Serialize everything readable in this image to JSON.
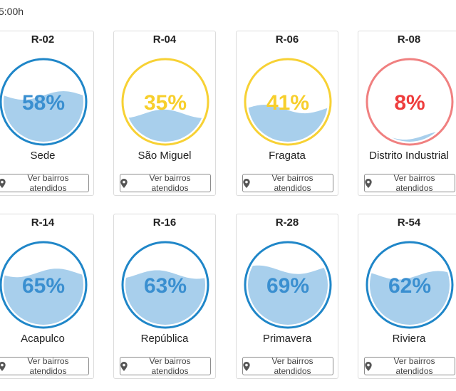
{
  "header": {
    "update_time": "5:00h"
  },
  "button_label": "Ver bairros atendidos",
  "reservoirs": [
    {
      "code": "R-02",
      "name": "Sede",
      "percent": 58,
      "percent_label": "58%",
      "status": "blue"
    },
    {
      "code": "R-04",
      "name": "São Miguel",
      "percent": 35,
      "percent_label": "35%",
      "status": "yellow"
    },
    {
      "code": "R-06",
      "name": "Fragata",
      "percent": 41,
      "percent_label": "41%",
      "status": "yellow"
    },
    {
      "code": "R-08",
      "name": "Distrito Industrial",
      "percent": 8,
      "percent_label": "8%",
      "status": "red"
    },
    {
      "code": "R-14",
      "name": "Acapulco",
      "percent": 65,
      "percent_label": "65%",
      "status": "blue"
    },
    {
      "code": "R-16",
      "name": "República",
      "percent": 63,
      "percent_label": "63%",
      "status": "blue"
    },
    {
      "code": "R-28",
      "name": "Primavera",
      "percent": 69,
      "percent_label": "69%",
      "status": "blue"
    },
    {
      "code": "R-54",
      "name": "Riviera",
      "percent": 62,
      "percent_label": "62%",
      "status": "blue"
    }
  ],
  "colors": {
    "blue": {
      "ring": "#1f86c8",
      "text": "#3a8fd0"
    },
    "yellow": {
      "ring": "#f7d134",
      "text": "#f7cf2c"
    },
    "red": {
      "ring": "#f08080",
      "text": "#ee3d3d"
    },
    "water": "#a8cfec"
  },
  "icons": {
    "button": "map-marker-icon"
  }
}
